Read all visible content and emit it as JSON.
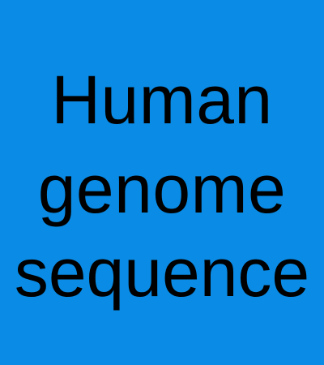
{
  "tile": {
    "background_color": "#0a8be5",
    "text_color": "#000000",
    "lines": [
      "Human",
      "genome",
      "sequence"
    ]
  }
}
